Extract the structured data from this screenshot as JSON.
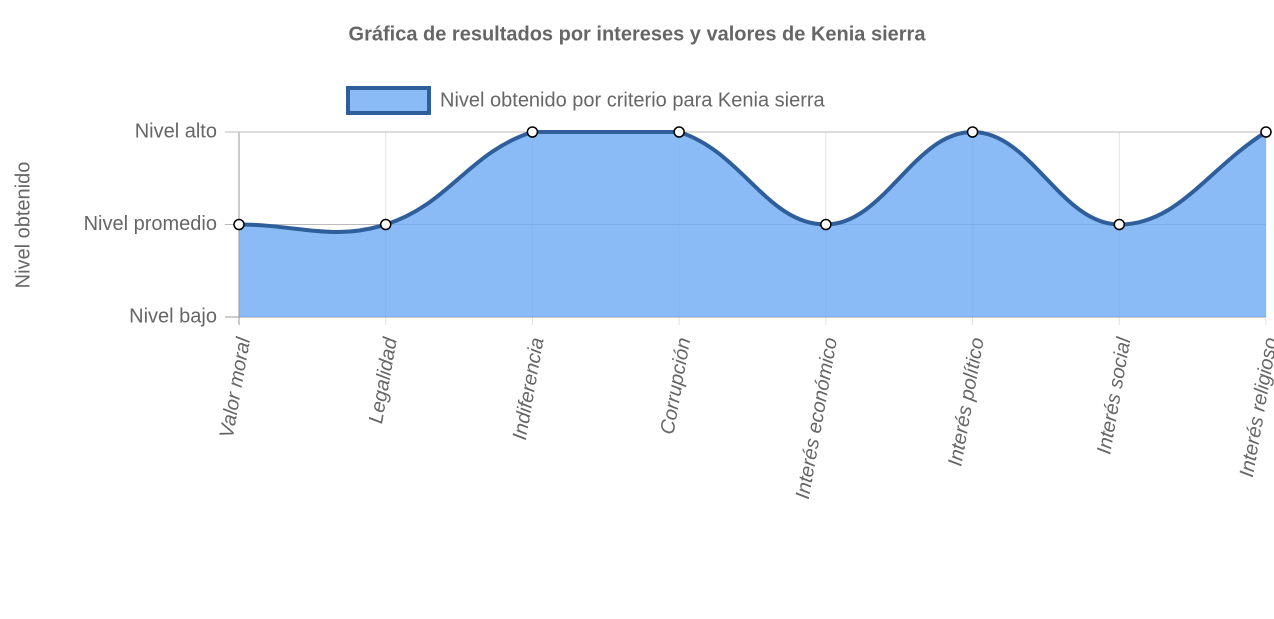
{
  "chart_data": {
    "type": "line",
    "title": "Gráfica de resultados por intereses y valores de Kenia sierra",
    "y_label": "Nivel obtenido",
    "categories": [
      "Valor moral",
      "Legalidad",
      "Indiferencia",
      "Corrupción",
      "Interés económico",
      "Interés político",
      "Interés social",
      "Interés religioso"
    ],
    "series": [
      {
        "name": "Nivel obtenido por criterio para Kenia sierra",
        "color": "#2f5f9a",
        "fill": "rgba(110,170,245,0.8)",
        "values": [
          2,
          2,
          3,
          3,
          2,
          3,
          2,
          3
        ]
      }
    ],
    "ylim": [
      1,
      3
    ],
    "yticks": [
      {
        "value": 1,
        "label": "Nivel bajo"
      },
      {
        "value": 2,
        "label": "Nivel promedio"
      },
      {
        "value": 3,
        "label": "Nivel alto"
      }
    ],
    "grid": true,
    "legend": "top"
  }
}
